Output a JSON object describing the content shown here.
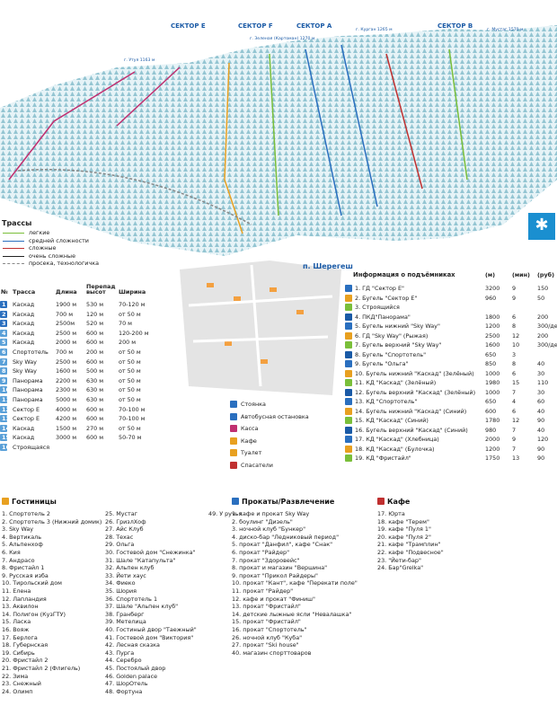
{
  "map": {
    "sectors": [
      "СЕКТОР Е",
      "СЕКТОР F",
      "СЕКТОР A",
      "СЕКТОР B"
    ],
    "peaks": [
      "г. Утуя 1163 м",
      "г. Зеленая (Картоман) 1270 м",
      "г. Курган 1265 м",
      "г. Мустаг 1570 м"
    ],
    "town": "п. Шерегеш",
    "trail_legend": {
      "title": "Трассы",
      "items": [
        "легкие",
        "средней сложности",
        "сложные",
        "очень сложные",
        "просека, технологичка"
      ]
    }
  },
  "trails_table": {
    "headers": [
      "№",
      "Трасса",
      "Длина",
      "Перепад высот",
      "Ширина"
    ],
    "rows": [
      [
        "1",
        "Каскад",
        "1900 м",
        "530 м",
        "70-120 м"
      ],
      [
        "2",
        "Каскад",
        "700 м",
        "120 м",
        "от 50 м"
      ],
      [
        "3",
        "Каскад",
        "2500м",
        "520 м",
        "70 м"
      ],
      [
        "4",
        "Каскад",
        "2500 м",
        "600 м",
        "120-200 м"
      ],
      [
        "5",
        "Каскад",
        "2000 м",
        "600 м",
        "200 м"
      ],
      [
        "6",
        "Спортотель",
        "700 м",
        "200 м",
        "от 50 м"
      ],
      [
        "7",
        "Sky Way",
        "2500 м",
        "600 м",
        "от 50 м"
      ],
      [
        "8",
        "Sky Way",
        "1600 м",
        "500 м",
        "от 50 м"
      ],
      [
        "9",
        "Панорама",
        "2200 м",
        "630 м",
        "от 50 м"
      ],
      [
        "10",
        "Панорама",
        "2300 м",
        "630 м",
        "от 50 м"
      ],
      [
        "11",
        "Панорама",
        "5000 м",
        "630 м",
        "от 50 м"
      ],
      [
        "12",
        "Сектор Е",
        "4000 м",
        "600 м",
        "70-100 м"
      ],
      [
        "13",
        "Сектор Е",
        "4200 м",
        "600 м",
        "70-100 м"
      ],
      [
        "14",
        "Каскад",
        "1500 м",
        "270 м",
        "от 50 м"
      ],
      [
        "15",
        "Каскад",
        "3000 м",
        "600 м",
        "50-70 м"
      ],
      [
        "16",
        "Строящаяся"
      ]
    ]
  },
  "lifts_table": {
    "title": "Информация о подъёмниках",
    "headers": [
      "(м)",
      "(мин)",
      "(руб)"
    ],
    "rows": [
      [
        "1. ГД \"Сектор Е\"",
        "3200",
        "9",
        "150"
      ],
      [
        "2. Бугель \"Сектор Е\"",
        "960",
        "9",
        "50"
      ],
      [
        "3. Строящийся"
      ],
      [
        "4. ПКД\"Панорама\"",
        "1800",
        "6",
        "200"
      ],
      [
        "5. Бугель нижний \"Sky Way\"",
        "1200",
        "8",
        "300/день"
      ],
      [
        "6. ГД \"Sky Way\" (Рыжая)",
        "2500",
        "12",
        "200"
      ],
      [
        "7. Бугель верхний \"Sky Way\"",
        "1600",
        "10",
        "300/день"
      ],
      [
        "8. Бугель \"Спортотель\"",
        "650",
        "3"
      ],
      [
        "9. Бугель \"Ольга\"",
        "850",
        "8",
        "40"
      ],
      [
        "10. Бугель нижний \"Каскад\" (Зелёный)",
        "1000",
        "6",
        "30"
      ],
      [
        "11. КД \"Каскад\" (Зелёный)",
        "1980",
        "15",
        "110"
      ],
      [
        "12. Бугель верхний \"Каскад\" (Зелёный)",
        "1000",
        "7",
        "30"
      ],
      [
        "13. КД \"Спортотель\"",
        "650",
        "4",
        "60"
      ],
      [
        "14. Бугель нижний \"Каскад\" (Синий)",
        "600",
        "6",
        "40"
      ],
      [
        "15. КД \"Каскад\" (Синий)",
        "1780",
        "12",
        "90"
      ],
      [
        "16. Бугель верхний \"Каскад\" (Синий)",
        "980",
        "7",
        "40"
      ],
      [
        "17. КД \"Каскад\" (Хлебница)",
        "2000",
        "9",
        "120"
      ],
      [
        "18. КД \"Каскад\" (Булочка)",
        "1200",
        "7",
        "90"
      ],
      [
        "19. КД \"Фристайл\"",
        "1750",
        "13",
        "90"
      ]
    ]
  },
  "symbols": [
    "Стоянка",
    "Автобусная остановка",
    "Касса",
    "Кафе",
    "Туалет",
    "Спасатели"
  ],
  "hotels": {
    "title": "Гостиницы",
    "items": [
      "1. Спортотель 2",
      "2. Спортотель 3 (Нижний домик)",
      "3. Sky Way",
      "4. Вертикаль",
      "5. Альпенхоф",
      "6. Кия",
      "7. Андрасо",
      "8. Фристайл 1",
      "9. Русская изба",
      "10. Тирольский дом",
      "11. Елена",
      "12. Лапландия",
      "13. Аквилон",
      "14. Полигон (КузГТУ)",
      "15. Ласка",
      "16. Вояж",
      "17. Берлога",
      "18. Губернская",
      "19. Сибирь",
      "20. Фристайл 2",
      "21. Фристайл 2 (Флигель)",
      "22. Зима",
      "23. Снежный",
      "24. Олимп",
      "25. Мустаг",
      "26. ГризлХоф",
      "27. Айс Клуб",
      "28. Техас",
      "29. Ольга",
      "30. Гостевой дом \"Снежинка\"",
      "31. Шале \"Катапульта\"",
      "32. Альпен клуб",
      "33. Йети хаус",
      "34. Фиеко",
      "35. Шория",
      "36. Спортотель 1",
      "37. Шале \"Альпен клуб\"",
      "38. Гранберг",
      "39. Метелица",
      "40. Гостиный двор \"Таежный\"",
      "41. Гостевой дом \"Виктория\"",
      "42. Лесная сказка",
      "43. Пурга",
      "44. Серебро",
      "45. Постоялый двор",
      "46. Golden palace",
      "47. ШорОтель",
      "48. Фортуна",
      "49. У ручья"
    ]
  },
  "rentals": {
    "title": "Прокаты/Развлечение",
    "items": [
      "1. кафе и прокат Sky Way",
      "2. боулинг \"Дизель\"",
      "3. ночной клуб \"Бункер\"",
      "4. диско-бар \"Ледниковый период\"",
      "5. прокат \"Данфил\", кафе \"Снак\"",
      "6. прокат \"Райдер\"",
      "7. прокат \"Здоровейс\"",
      "8. прокат и магазин \"Вершина\"",
      "9. прокат \"Прикол Райдеры\"",
      "10. прокат \"Кант\", кафе \"Перекати поле\"",
      "11. прокат \"Райдер\"",
      "12. кафе и прокат \"Финиш\"",
      "13. прокат \"Фристайл\"",
      "14. детские лыжные ясли \"Невалашка\"",
      "15. прокат \"Фристайл\"",
      "16. прокат \"Спортотель\"",
      "26. ночной клуб \"Куба\"",
      "27. прокат \"Ski house\"",
      "40. магазин спорттоваров"
    ]
  },
  "cafes": {
    "title": "Кафе",
    "items": [
      "17. Юрта",
      "18. кафе \"Терем\"",
      "19. кафе \"Пуля 1\"",
      "20. кафе \"Пуля 2\"",
      "21. кафе \"Трамплин\"",
      "22. кафе \"Подвесное\"",
      "23. \"Йети-бар\"",
      "24. Бар\"Grelka\""
    ]
  }
}
